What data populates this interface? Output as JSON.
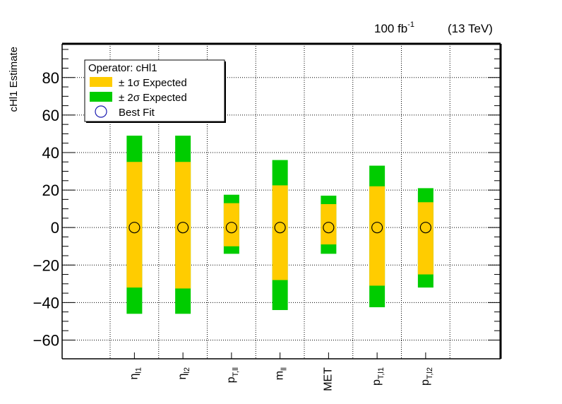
{
  "lumi_label": "100 fb",
  "lumi_exp": "-1",
  "energy_label": "(13 TeV)",
  "colors": {
    "one_sigma": "#ffcc00",
    "two_sigma": "#00cc00",
    "best_fit_marker": "#000000",
    "legend_marker": "#1a1ab0"
  },
  "chart_data": {
    "type": "error-band",
    "ylabel": "cHl1 Estimate",
    "ylim": [
      -70,
      98
    ],
    "yticks": [
      -60,
      -40,
      -20,
      0,
      20,
      40,
      60,
      80
    ],
    "grid": true,
    "legend": {
      "position": "top-left",
      "title": "Operator: cHl1",
      "entries": [
        "± 1σ Expected",
        "± 2σ Expected",
        "Best Fit"
      ]
    },
    "categories": [
      {
        "base": "η",
        "sub": "l1"
      },
      {
        "base": "η",
        "sub": "l2"
      },
      {
        "base": "p",
        "sub": "T,ll"
      },
      {
        "base": "m",
        "sub": "ll"
      },
      {
        "base": "MET",
        "sub": ""
      },
      {
        "base": "p",
        "sub": "T,l1"
      },
      {
        "base": "p",
        "sub": "T,l2"
      }
    ],
    "best_fit": [
      0,
      0,
      0,
      0,
      0,
      0,
      0
    ],
    "one_sigma": [
      [
        -32,
        35
      ],
      [
        -32.5,
        35
      ],
      [
        -10,
        13
      ],
      [
        -28,
        22.5
      ],
      [
        -9,
        12.5
      ],
      [
        -31,
        22
      ],
      [
        -25,
        13.5
      ]
    ],
    "two_sigma": [
      [
        -46,
        49
      ],
      [
        -46,
        49
      ],
      [
        -14,
        17.5
      ],
      [
        -44,
        36
      ],
      [
        -14,
        17
      ],
      [
        -42.5,
        33
      ],
      [
        -32,
        21
      ]
    ]
  }
}
